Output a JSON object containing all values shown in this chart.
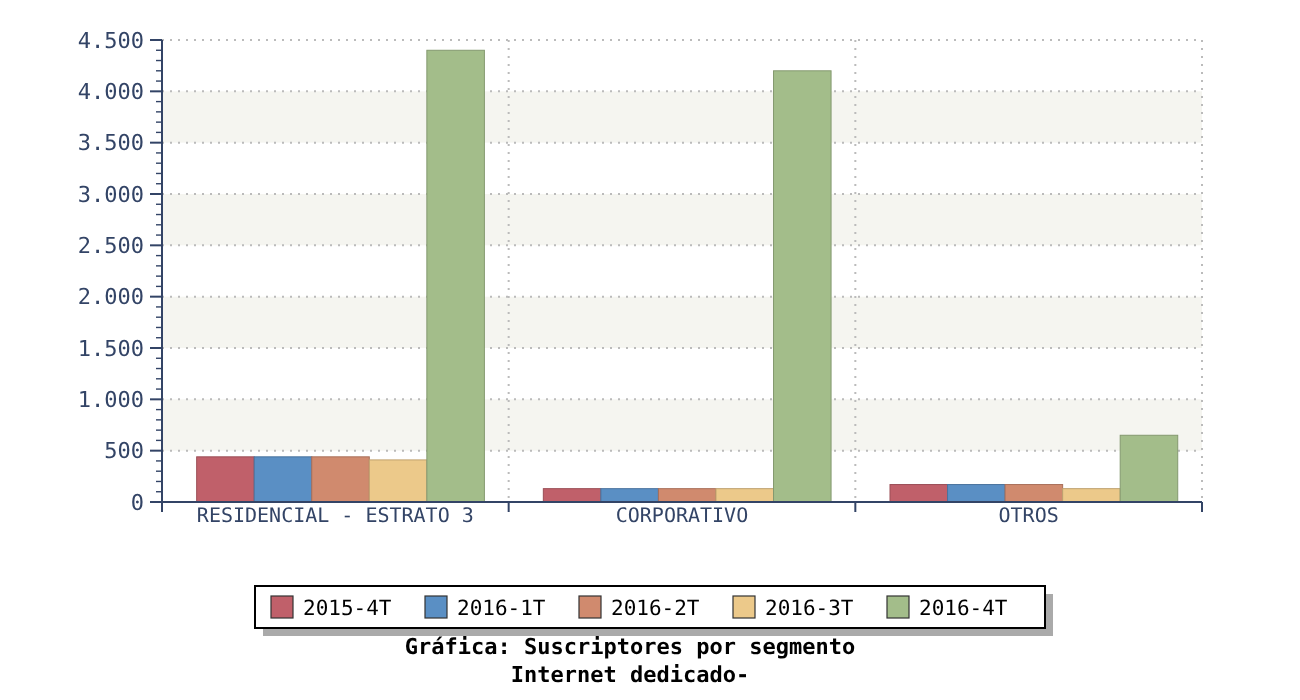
{
  "chart_data": {
    "type": "bar",
    "title": "Gráfica: Suscriptores por segmento",
    "subtitle": "Internet dedicado-",
    "categories": [
      "RESIDENCIAL - ESTRATO 3",
      "CORPORATIVO",
      "OTROS"
    ],
    "series": [
      {
        "name": "2015-4T",
        "color": "#c0606a",
        "values": [
          440,
          130,
          170
        ]
      },
      {
        "name": "2016-1T",
        "color": "#5a8fc4",
        "values": [
          440,
          130,
          170
        ]
      },
      {
        "name": "2016-2T",
        "color": "#d08a6e",
        "values": [
          440,
          130,
          170
        ]
      },
      {
        "name": "2016-3T",
        "color": "#ecc98a",
        "values": [
          410,
          130,
          130
        ]
      },
      {
        "name": "2016-4T",
        "color": "#a3bd8a",
        "values": [
          4400,
          4200,
          650
        ]
      }
    ],
    "ylim": [
      0,
      4500
    ],
    "yticks": [
      {
        "value": 0,
        "label": "0"
      },
      {
        "value": 500,
        "label": "500"
      },
      {
        "value": 1000,
        "label": "1.000"
      },
      {
        "value": 1500,
        "label": "1.500"
      },
      {
        "value": 2000,
        "label": "2.000"
      },
      {
        "value": 2500,
        "label": "2.500"
      },
      {
        "value": 3000,
        "label": "3.000"
      },
      {
        "value": 3500,
        "label": "3.500"
      },
      {
        "value": 4000,
        "label": "4.000"
      },
      {
        "value": 4500,
        "label": "4.500"
      }
    ],
    "grid": true,
    "legend": "bottom"
  }
}
